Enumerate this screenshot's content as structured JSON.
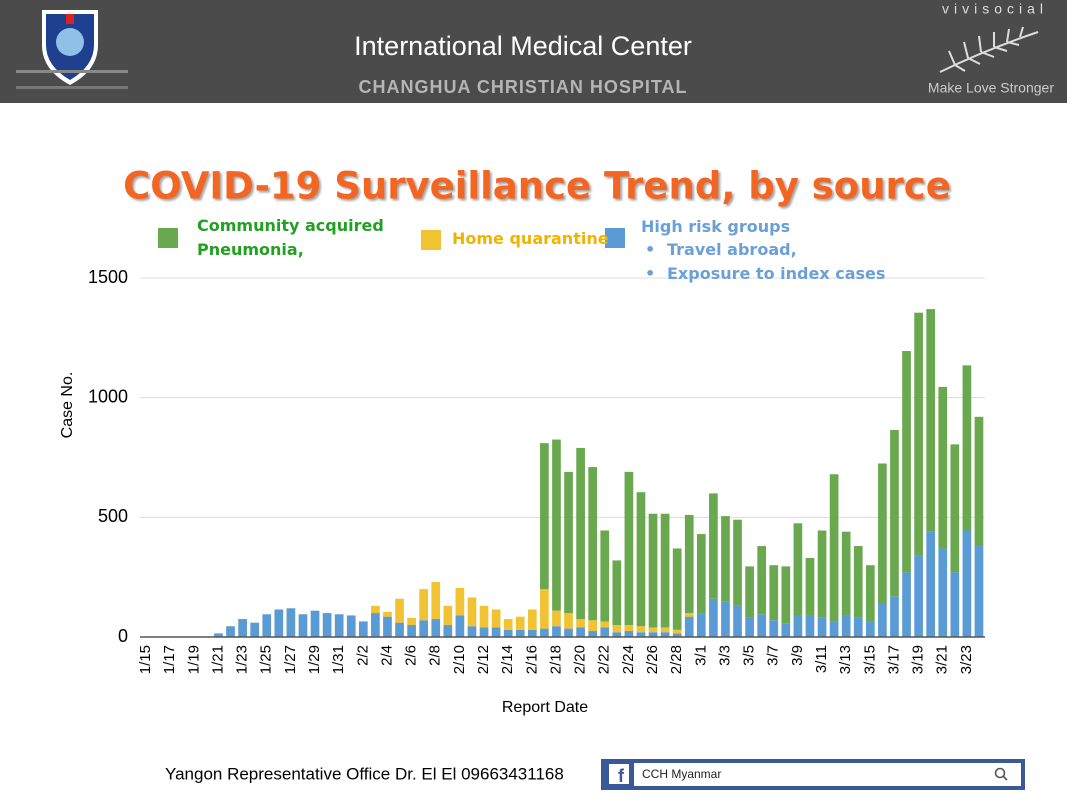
{
  "header": {
    "title": "International Medical Center",
    "subtitle": "CHANGHUA CHRISTIAN HOSPITAL",
    "brand": "vivisocial",
    "tagline": "Make Love Stronger"
  },
  "chart_data": {
    "type": "bar",
    "stacked": true,
    "title": "COVID-19 Surveillance Trend, by source",
    "x_label": "Report Date",
    "y_label": "Case No.",
    "categories": [
      "1/15",
      null,
      "1/17",
      null,
      "1/19",
      null,
      "1/21",
      null,
      "1/23",
      null,
      "1/25",
      null,
      "1/27",
      null,
      "1/29",
      null,
      "1/31",
      null,
      "2/2",
      null,
      "2/4",
      null,
      "2/6",
      null,
      "2/8",
      null,
      "2/10",
      null,
      "2/12",
      null,
      "2/14",
      null,
      "2/16",
      null,
      "2/18",
      null,
      "2/20",
      null,
      "2/22",
      null,
      "2/24",
      null,
      "2/26",
      null,
      "2/28",
      null,
      "3/1",
      null,
      "3/3",
      null,
      "3/5",
      null,
      "3/7",
      null,
      "3/9",
      null,
      "3/11",
      null,
      "3/13",
      null,
      "3/15",
      null,
      "3/17",
      null,
      "3/19",
      null,
      "3/21",
      null,
      "3/23",
      null
    ],
    "series": [
      {
        "name": "High risk groups",
        "color": "#5b9bd5",
        "values": [
          0,
          0,
          0,
          0,
          0,
          0,
          15,
          45,
          75,
          60,
          95,
          115,
          120,
          95,
          110,
          100,
          95,
          90,
          65,
          100,
          85,
          60,
          50,
          70,
          75,
          50,
          90,
          45,
          40,
          40,
          30,
          30,
          30,
          35,
          45,
          35,
          40,
          25,
          40,
          20,
          25,
          20,
          20,
          20,
          15,
          85,
          100,
          160,
          150,
          130,
          80,
          95,
          70,
          55,
          90,
          90,
          80,
          65,
          90,
          80,
          65,
          140,
          170,
          270,
          340,
          440,
          370,
          270,
          445,
          380
        ]
      },
      {
        "name": "Home quarantine",
        "color": "#f1c232",
        "values": [
          0,
          0,
          0,
          0,
          0,
          0,
          0,
          0,
          0,
          0,
          0,
          0,
          0,
          0,
          0,
          0,
          0,
          0,
          0,
          30,
          20,
          100,
          30,
          130,
          155,
          80,
          115,
          120,
          90,
          75,
          45,
          55,
          85,
          165,
          65,
          65,
          35,
          45,
          25,
          30,
          25,
          25,
          20,
          20,
          15,
          15,
          0,
          0,
          0,
          0,
          0,
          0,
          0,
          0,
          0,
          0,
          0,
          0,
          0,
          0,
          0,
          0,
          0,
          0,
          0,
          0,
          0,
          0,
          0,
          0
        ]
      },
      {
        "name": "Community acquired Pneumonia,",
        "color": "#6aa84f",
        "values": [
          0,
          0,
          0,
          0,
          0,
          0,
          0,
          0,
          0,
          0,
          0,
          0,
          0,
          0,
          0,
          0,
          0,
          0,
          0,
          0,
          0,
          0,
          0,
          0,
          0,
          0,
          0,
          0,
          0,
          0,
          0,
          0,
          0,
          610,
          715,
          590,
          715,
          640,
          380,
          270,
          640,
          560,
          475,
          475,
          340,
          410,
          330,
          440,
          355,
          360,
          215,
          285,
          230,
          240,
          385,
          240,
          365,
          615,
          350,
          300,
          235,
          585,
          695,
          925,
          1015,
          930,
          675,
          535,
          690,
          540
        ]
      }
    ],
    "legend_notes": [
      "Travel abroad,",
      "Exposure to index cases"
    ],
    "ylim": [
      0,
      1500
    ],
    "yticks": [
      0,
      500,
      1000,
      1500
    ],
    "grid": true
  },
  "footer": {
    "contact": "Yangon Representative Office Dr. El El 09663431168",
    "facebook_page": "CCH Myanmar"
  }
}
